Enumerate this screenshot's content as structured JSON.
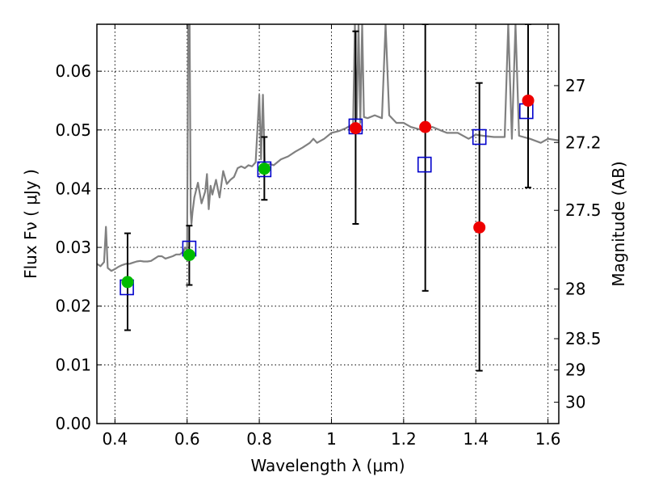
{
  "chart_data": {
    "type": "scatter",
    "xlabel": "Wavelength  λ (μm)",
    "ylabel": "Flux  Fν  ( μJy )",
    "y2label": "Magnitude (AB)",
    "xlim": [
      0.35,
      1.63
    ],
    "ylim": [
      0.0,
      0.068
    ],
    "x_ticks": [
      0.4,
      0.6,
      0.8,
      1.0,
      1.2,
      1.4,
      1.6
    ],
    "x_tick_labels": [
      "0.4",
      "0.6",
      "0.8",
      "1",
      "1.2",
      "1.4",
      "1.6"
    ],
    "y_ticks": [
      0.0,
      0.01,
      0.02,
      0.03,
      0.04,
      0.05,
      0.06
    ],
    "y_tick_labels": [
      "0.00",
      "0.01",
      "0.02",
      "0.03",
      "0.04",
      "0.05",
      "0.06"
    ],
    "y2_ticks": [
      27,
      27.2,
      27.5,
      28,
      28.5,
      29,
      30
    ],
    "y2_tick_labels": [
      "27",
      "27.2",
      "27.5",
      "28",
      "28.5",
      "29",
      "30"
    ],
    "grid": true,
    "colors": {
      "template": "#808080",
      "model_box": "#0000cc",
      "hst_point": "#00bb00",
      "ir_point": "#ee0000",
      "errorbar": "#000000"
    },
    "series": [
      {
        "kind": "line",
        "x": [
          0.35,
          0.36,
          0.37,
          0.375,
          0.38,
          0.39,
          0.4,
          0.41,
          0.42,
          0.43,
          0.44,
          0.45,
          0.46,
          0.47,
          0.48,
          0.49,
          0.5,
          0.51,
          0.52,
          0.53,
          0.54,
          0.55,
          0.56,
          0.57,
          0.58,
          0.59,
          0.595,
          0.6,
          0.603,
          0.605,
          0.607,
          0.61,
          0.612,
          0.615,
          0.62,
          0.63,
          0.64,
          0.65,
          0.655,
          0.66,
          0.665,
          0.67,
          0.68,
          0.69,
          0.7,
          0.71,
          0.72,
          0.73,
          0.74,
          0.75,
          0.76,
          0.77,
          0.78,
          0.79,
          0.8,
          0.805,
          0.81,
          0.815,
          0.82,
          0.83,
          0.84,
          0.86,
          0.88,
          0.9,
          0.92,
          0.94,
          0.95,
          0.96,
          0.98,
          1.0,
          1.02,
          1.04,
          1.06,
          1.065,
          1.07,
          1.075,
          1.08,
          1.085,
          1.09,
          1.1,
          1.12,
          1.14,
          1.15,
          1.16,
          1.18,
          1.2,
          1.22,
          1.25,
          1.28,
          1.3,
          1.32,
          1.35,
          1.38,
          1.4,
          1.42,
          1.45,
          1.48,
          1.49,
          1.5,
          1.51,
          1.52,
          1.55,
          1.58,
          1.6,
          1.63
        ],
        "y": [
          0.0272,
          0.0268,
          0.0275,
          0.0335,
          0.0265,
          0.026,
          0.0263,
          0.0267,
          0.027,
          0.0272,
          0.0272,
          0.0274,
          0.0276,
          0.0277,
          0.0276,
          0.0276,
          0.0277,
          0.0281,
          0.0285,
          0.0285,
          0.0281,
          0.0283,
          0.0285,
          0.0288,
          0.0288,
          0.0293,
          0.03,
          0.0295,
          0.068,
          0.068,
          0.068,
          0.036,
          0.034,
          0.036,
          0.0385,
          0.041,
          0.0375,
          0.0395,
          0.0425,
          0.0365,
          0.0405,
          0.039,
          0.0415,
          0.0385,
          0.043,
          0.0408,
          0.0415,
          0.042,
          0.0435,
          0.0438,
          0.0435,
          0.044,
          0.0438,
          0.0445,
          0.056,
          0.045,
          0.056,
          0.0442,
          0.044,
          0.0442,
          0.044,
          0.045,
          0.0455,
          0.0463,
          0.047,
          0.0478,
          0.0485,
          0.0478,
          0.0485,
          0.0495,
          0.0498,
          0.0503,
          0.051,
          0.068,
          0.052,
          0.068,
          0.0512,
          0.068,
          0.0522,
          0.052,
          0.0525,
          0.052,
          0.068,
          0.0525,
          0.0512,
          0.0512,
          0.0505,
          0.05,
          0.0505,
          0.05,
          0.0495,
          0.0495,
          0.0485,
          0.0492,
          0.049,
          0.0488,
          0.0488,
          0.068,
          0.0485,
          0.068,
          0.049,
          0.0485,
          0.0478,
          0.0485,
          0.0482
        ]
      },
      {
        "kind": "boxes",
        "x": [
          0.433,
          0.606,
          0.814,
          1.067,
          1.258,
          1.41,
          1.54
        ],
        "y": [
          0.0232,
          0.0298,
          0.0433,
          0.0506,
          0.0441,
          0.0488,
          0.0532
        ]
      },
      {
        "kind": "points",
        "color_key": "hst_point",
        "x": [
          0.435,
          0.606,
          0.814
        ],
        "y": [
          0.0241,
          0.0287,
          0.0434
        ],
        "yerr_low": [
          0.0159,
          0.0236,
          0.0381
        ],
        "yerr_high": [
          0.0324,
          0.0337,
          0.0488
        ]
      },
      {
        "kind": "points",
        "color_key": "ir_point",
        "x": [
          1.067,
          1.26,
          1.41,
          1.545
        ],
        "y": [
          0.0503,
          0.0505,
          0.0334,
          0.055
        ],
        "yerr_low": [
          0.034,
          0.0226,
          0.009,
          0.0402
        ],
        "yerr_high": [
          0.0668,
          0.068,
          0.058,
          0.068
        ]
      }
    ]
  }
}
